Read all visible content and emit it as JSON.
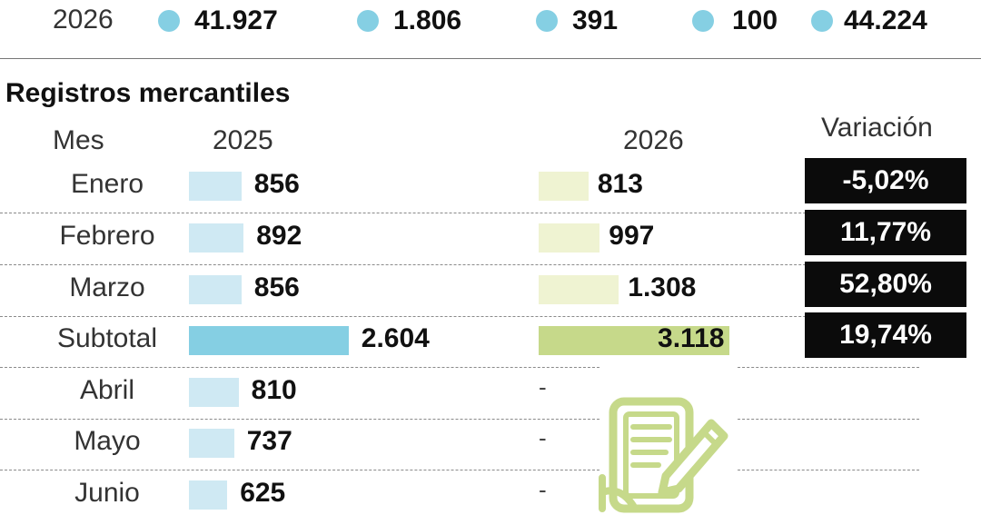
{
  "top_row": {
    "year": "2026",
    "values": [
      "41.927",
      "1.806",
      "391",
      "100",
      "44.224"
    ],
    "dot_color": "#85cfe3"
  },
  "chart_data": {
    "type": "bar",
    "title": "Registros mercantiles",
    "headers": {
      "month": "Mes",
      "year1": "2025",
      "year2": "2026",
      "variation": "Variación"
    },
    "rows": [
      {
        "label": "Enero",
        "v2025": 856,
        "v2025_label": "856",
        "v2026": 813,
        "v2026_label": "813",
        "variation": "-5,02%"
      },
      {
        "label": "Febrero",
        "v2025": 892,
        "v2025_label": "892",
        "v2026": 997,
        "v2026_label": "997",
        "variation": "11,77%"
      },
      {
        "label": "Marzo",
        "v2025": 856,
        "v2025_label": "856",
        "v2026": 1308,
        "v2026_label": "1.308",
        "variation": "52,80%"
      },
      {
        "label": "Subtotal",
        "v2025": 2604,
        "v2025_label": "2.604",
        "v2026": 3118,
        "v2026_label": "3.118",
        "variation": "19,74%",
        "subtotal": true
      },
      {
        "label": "Abril",
        "v2025": 810,
        "v2025_label": "810",
        "v2026": null,
        "v2026_label": "-",
        "variation": ""
      },
      {
        "label": "Mayo",
        "v2025": 737,
        "v2025_label": "737",
        "v2026": null,
        "v2026_label": "-",
        "variation": ""
      },
      {
        "label": "Junio",
        "v2025": 625,
        "v2025_label": "625",
        "v2026": null,
        "v2026_label": "-",
        "variation": ""
      }
    ],
    "colors": {
      "bar_2025": "#cfe9f3",
      "bar_2025_subtotal": "#85cfe3",
      "bar_2026": "#eff3d2",
      "bar_2026_subtotal": "#c6d98a",
      "variation_bg": "#0b0b0b",
      "icon": "#c6d98a"
    },
    "icon": "document-pen-icon"
  }
}
